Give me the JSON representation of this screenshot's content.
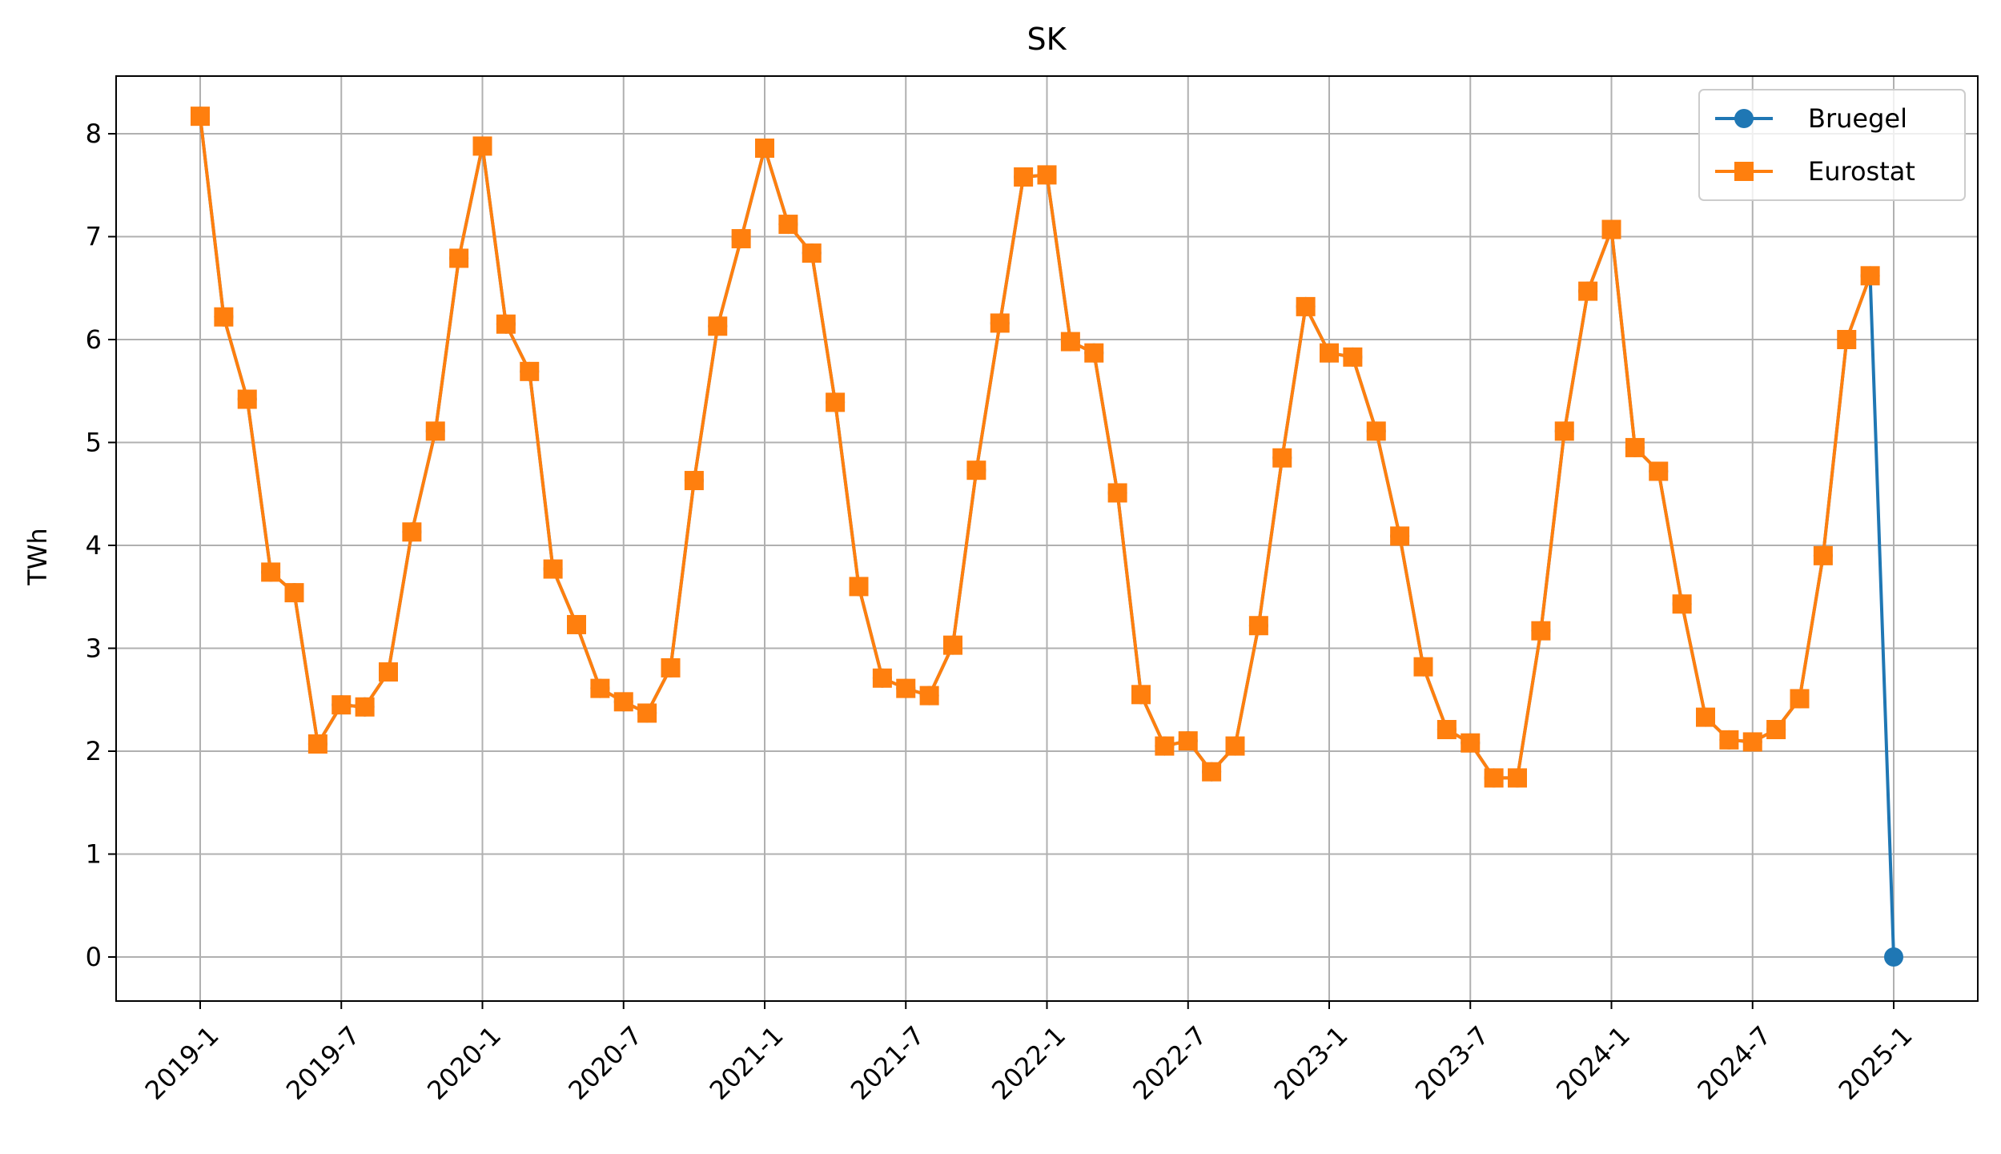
{
  "chart_data": {
    "type": "line",
    "title": "SK",
    "xlabel": "",
    "ylabel": "TWh",
    "x_ticks": [
      "2019-1",
      "2019-7",
      "2020-1",
      "2020-7",
      "2021-1",
      "2021-7",
      "2022-1",
      "2022-7",
      "2023-1",
      "2023-7",
      "2024-1",
      "2024-7",
      "2025-1"
    ],
    "y_ticks": [
      "0",
      "1",
      "2",
      "3",
      "4",
      "5",
      "6",
      "7",
      "8"
    ],
    "ylim": [
      -0.4,
      8.58
    ],
    "grid": true,
    "legend_position": "top-right",
    "series": [
      {
        "name": "Bruegel",
        "color": "#1f77b4",
        "marker": "circle",
        "x": [
          "2019-01",
          "2019-02",
          "2019-03",
          "2019-04",
          "2019-05",
          "2019-06",
          "2019-07",
          "2019-08",
          "2019-09",
          "2019-10",
          "2019-11",
          "2019-12",
          "2020-01",
          "2020-02",
          "2020-03",
          "2020-04",
          "2020-05",
          "2020-06",
          "2020-07",
          "2020-08",
          "2020-09",
          "2020-10",
          "2020-11",
          "2020-12",
          "2021-01",
          "2021-02",
          "2021-03",
          "2021-04",
          "2021-05",
          "2021-06",
          "2021-07",
          "2021-08",
          "2021-09",
          "2021-10",
          "2021-11",
          "2021-12",
          "2022-01",
          "2022-02",
          "2022-03",
          "2022-04",
          "2022-05",
          "2022-06",
          "2022-07",
          "2022-08",
          "2022-09",
          "2022-10",
          "2022-11",
          "2022-12",
          "2023-01",
          "2023-02",
          "2023-03",
          "2023-04",
          "2023-05",
          "2023-06",
          "2023-07",
          "2023-08",
          "2023-09",
          "2023-10",
          "2023-11",
          "2023-12",
          "2024-01",
          "2024-02",
          "2024-03",
          "2024-04",
          "2024-05",
          "2024-06",
          "2024-07",
          "2024-08",
          "2024-09",
          "2024-10",
          "2024-11",
          "2024-12",
          "2025-01"
        ],
        "values": [
          8.17,
          6.22,
          5.42,
          3.74,
          3.54,
          2.07,
          2.45,
          2.43,
          2.77,
          4.13,
          5.11,
          6.79,
          7.88,
          6.15,
          5.69,
          3.77,
          3.23,
          2.61,
          2.48,
          2.37,
          2.81,
          4.63,
          6.13,
          6.98,
          7.86,
          7.12,
          6.84,
          5.39,
          3.6,
          2.71,
          2.61,
          2.54,
          3.03,
          4.73,
          6.16,
          7.58,
          7.6,
          5.98,
          5.87,
          4.51,
          2.55,
          2.05,
          2.1,
          1.8,
          2.05,
          3.22,
          4.85,
          6.32,
          5.87,
          5.83,
          5.11,
          4.09,
          2.82,
          2.21,
          2.08,
          1.74,
          1.74,
          3.17,
          5.11,
          6.47,
          7.07,
          4.95,
          4.72,
          3.43,
          2.33,
          2.11,
          2.09,
          2.21,
          2.51,
          3.9,
          6.0,
          6.62,
          0.0
        ]
      },
      {
        "name": "Eurostat",
        "color": "#ff7f0e",
        "marker": "square",
        "x": [
          "2019-01",
          "2019-02",
          "2019-03",
          "2019-04",
          "2019-05",
          "2019-06",
          "2019-07",
          "2019-08",
          "2019-09",
          "2019-10",
          "2019-11",
          "2019-12",
          "2020-01",
          "2020-02",
          "2020-03",
          "2020-04",
          "2020-05",
          "2020-06",
          "2020-07",
          "2020-08",
          "2020-09",
          "2020-10",
          "2020-11",
          "2020-12",
          "2021-01",
          "2021-02",
          "2021-03",
          "2021-04",
          "2021-05",
          "2021-06",
          "2021-07",
          "2021-08",
          "2021-09",
          "2021-10",
          "2021-11",
          "2021-12",
          "2022-01",
          "2022-02",
          "2022-03",
          "2022-04",
          "2022-05",
          "2022-06",
          "2022-07",
          "2022-08",
          "2022-09",
          "2022-10",
          "2022-11",
          "2022-12",
          "2023-01",
          "2023-02",
          "2023-03",
          "2023-04",
          "2023-05",
          "2023-06",
          "2023-07",
          "2023-08",
          "2023-09",
          "2023-10",
          "2023-11",
          "2023-12",
          "2024-01",
          "2024-02",
          "2024-03",
          "2024-04",
          "2024-05",
          "2024-06",
          "2024-07",
          "2024-08",
          "2024-09",
          "2024-10",
          "2024-11",
          "2024-12"
        ],
        "values": [
          8.17,
          6.22,
          5.42,
          3.74,
          3.54,
          2.07,
          2.45,
          2.43,
          2.77,
          4.13,
          5.11,
          6.79,
          7.88,
          6.15,
          5.69,
          3.77,
          3.23,
          2.61,
          2.48,
          2.37,
          2.81,
          4.63,
          6.13,
          6.98,
          7.86,
          7.12,
          6.84,
          5.39,
          3.6,
          2.71,
          2.61,
          2.54,
          3.03,
          4.73,
          6.16,
          7.58,
          7.6,
          5.98,
          5.87,
          4.51,
          2.55,
          2.05,
          2.1,
          1.8,
          2.05,
          3.22,
          4.85,
          6.32,
          5.87,
          5.83,
          5.11,
          4.09,
          2.82,
          2.21,
          2.08,
          1.74,
          1.74,
          3.17,
          5.11,
          6.47,
          7.07,
          4.95,
          4.72,
          3.43,
          2.33,
          2.11,
          2.09,
          2.21,
          2.51,
          3.9,
          6.0,
          6.62
        ]
      }
    ]
  }
}
